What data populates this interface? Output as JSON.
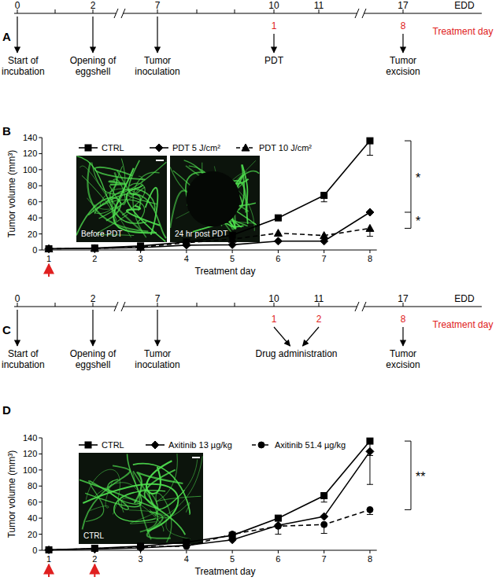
{
  "timelines": [
    {
      "label": "A",
      "days": [
        "0",
        "2",
        "7",
        "10",
        "11",
        "17",
        "EDD"
      ],
      "treatment_days": [
        null,
        null,
        null,
        "1",
        null,
        "8",
        null
      ],
      "treatment_label": "Treatment day",
      "events": [
        {
          "day": 0,
          "text": [
            "Start of",
            "incubation"
          ]
        },
        {
          "day": 1,
          "text": [
            "Opening of",
            "eggshell"
          ]
        },
        {
          "day": 2,
          "text": [
            "Tumor",
            "inoculation"
          ]
        },
        {
          "day": 3,
          "text": [
            "PDT"
          ]
        },
        {
          "day": 5,
          "text": [
            "Tumor",
            "excision"
          ]
        }
      ]
    },
    {
      "label": "C",
      "days": [
        "0",
        "2",
        "7",
        "10",
        "11",
        "17",
        "EDD"
      ],
      "treatment_days": [
        null,
        null,
        null,
        "1",
        "2",
        "8",
        null
      ],
      "treatment_label": "Treatment day",
      "events": [
        {
          "day": 0,
          "text": [
            "Start of",
            "incubation"
          ]
        },
        {
          "day": 1,
          "text": [
            "Opening of",
            "eggshell"
          ]
        },
        {
          "day": 2,
          "text": [
            "Tumor",
            "inoculation"
          ]
        },
        {
          "days": [
            3,
            4
          ],
          "text": [
            "Drug administration"
          ]
        },
        {
          "day": 5,
          "text": [
            "Tumor",
            "excision"
          ]
        }
      ]
    }
  ],
  "chart_data": [
    {
      "type": "line",
      "title": "B",
      "x_label": "Treatment day",
      "y_label": "Tumor volume (mm³)",
      "x": [
        1,
        2,
        3,
        4,
        5,
        6,
        7,
        8
      ],
      "xlim": [
        0.85,
        8.15
      ],
      "xticks": [
        1,
        2,
        3,
        4,
        5,
        6,
        7,
        8
      ],
      "ylim": [
        0,
        140
      ],
      "yticks": [
        0,
        20,
        40,
        60,
        80,
        100,
        120,
        140
      ],
      "legend": "top",
      "series": [
        {
          "name": "CTRL",
          "color": "#000000",
          "marker": "square",
          "line_style": "solid",
          "values": [
            1.5,
            2.5,
            5,
            10,
            18.5,
            40,
            68,
            136
          ],
          "errors": [
            null,
            null,
            null,
            null,
            null,
            null,
            8,
            18
          ]
        },
        {
          "name": "PDT 5 J/cm²",
          "color": "#000000",
          "marker": "diamond",
          "line_style": "solid",
          "values": [
            1.5,
            2,
            3,
            6,
            6.5,
            11,
            11,
            47
          ],
          "errors": [
            null,
            null,
            null,
            null,
            null,
            null,
            null,
            null
          ]
        },
        {
          "name": "PDT 10 J/cm²",
          "color": "#000000",
          "marker": "triangle",
          "line_style": "dashed",
          "values": [
            1.5,
            2,
            3.5,
            9,
            13.5,
            21,
            18,
            27
          ],
          "errors": [
            null,
            null,
            null,
            null,
            null,
            null,
            null,
            10
          ]
        }
      ],
      "annotations": [
        "*",
        "*"
      ],
      "inset_labels": [
        "Before PDT",
        "24 hr post PDT"
      ],
      "treatment_days": [
        1
      ]
    },
    {
      "type": "line",
      "title": "D",
      "x_label": "Treatment day",
      "y_label": "Tumor volume (mm³)",
      "x": [
        1,
        2,
        3,
        4,
        5,
        6,
        7,
        8
      ],
      "xlim": [
        0.85,
        8.15
      ],
      "xticks": [
        1,
        2,
        3,
        4,
        5,
        6,
        7,
        8
      ],
      "ylim": [
        0,
        140
      ],
      "yticks": [
        0,
        20,
        40,
        60,
        80,
        100,
        120,
        140
      ],
      "legend": "top",
      "series": [
        {
          "name": "CTRL",
          "color": "#000000",
          "marker": "square",
          "line_style": "solid",
          "values": [
            0.5,
            2.5,
            5,
            10,
            18.5,
            40,
            68,
            136
          ],
          "errors": [
            null,
            null,
            null,
            null,
            null,
            null,
            8,
            18
          ]
        },
        {
          "name": "Axitinib 13 µg/kg",
          "color": "#000000",
          "marker": "diamond",
          "line_style": "solid",
          "values": [
            0.5,
            1.5,
            3,
            6,
            13,
            31,
            42,
            123
          ],
          "errors": [
            null,
            null,
            null,
            null,
            null,
            null,
            null,
            41
          ]
        },
        {
          "name": "Axitinib 51.4 µg/kg",
          "color": "#000000",
          "marker": "circle",
          "line_style": "dashed",
          "values": [
            0.5,
            2,
            4.5,
            5,
            20,
            30,
            32,
            50.5
          ],
          "errors": [
            null,
            null,
            null,
            null,
            null,
            10,
            11,
            6
          ]
        }
      ],
      "annotations": [
        "**"
      ],
      "inset_labels": [
        "CTRL"
      ],
      "treatment_days": [
        1,
        2
      ]
    }
  ]
}
